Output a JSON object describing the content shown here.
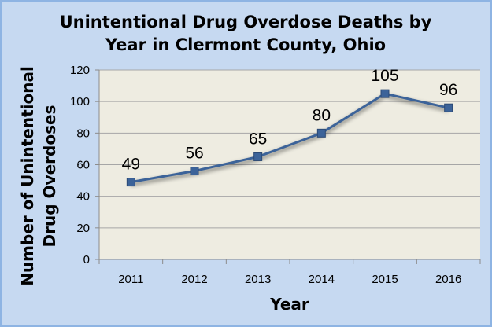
{
  "colors": {
    "background": "#c6d9f1",
    "plot_area": "#eeece1",
    "line": "#3c6399",
    "marker": "#3c6399",
    "gridline": "#a6a6a6"
  },
  "chart_data": {
    "type": "line",
    "title": "Unintentional Drug Overdose Deaths by Year in Clermont County, Ohio",
    "title_lines": [
      "Unintentional Drug Overdose Deaths by",
      "Year in Clermont County, Ohio"
    ],
    "xlabel": "Year",
    "ylabel": "Number of Unintentional Drug Overdoses",
    "ylabel_lines": [
      "Number of Unintentional",
      "Drug Overdoses"
    ],
    "categories": [
      "2011",
      "2012",
      "2013",
      "2014",
      "2015",
      "2016"
    ],
    "values": [
      49,
      56,
      65,
      80,
      105,
      96
    ],
    "data_labels": [
      "49",
      "56",
      "65",
      "80",
      "105",
      "96"
    ],
    "ylim": [
      0,
      120
    ],
    "yticks": [
      0,
      20,
      40,
      60,
      80,
      100,
      120
    ],
    "grid": true,
    "legend": "none",
    "marker": "square"
  }
}
